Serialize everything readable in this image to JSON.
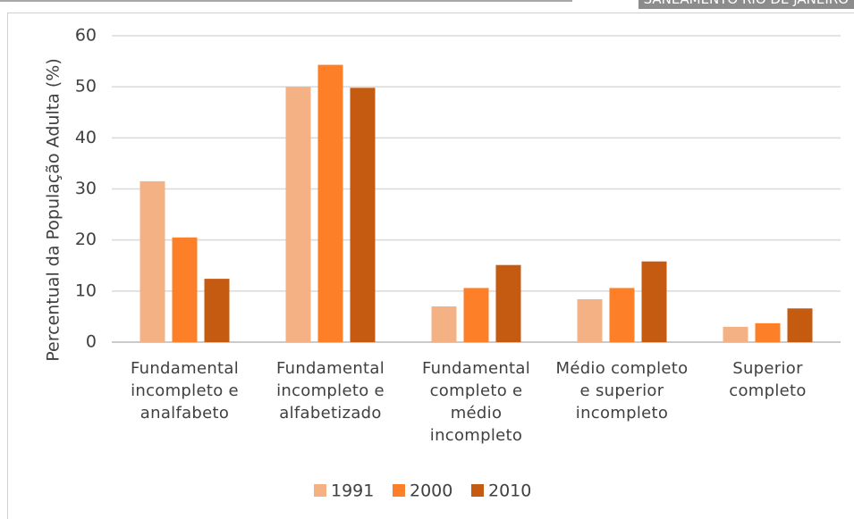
{
  "header_text": "SANEAMENTO RIO DE JANEIRO",
  "chart_data": {
    "type": "bar",
    "y_label": "Percentual da População Adulta (%)",
    "categories": [
      "Fundamental incompleto e analfabeto",
      "Fundamental incompleto e alfabetizado",
      "Fundamental completo e médio incompleto",
      "Médio completo e superior incompleto",
      "Superior completo"
    ],
    "series": [
      {
        "name": "1991",
        "color": "#f4b183",
        "values": [
          31.5,
          50,
          7,
          8.4,
          3
        ]
      },
      {
        "name": "2000",
        "color": "#fd7f28",
        "values": [
          20.5,
          54.3,
          10.6,
          10.6,
          3.7
        ]
      },
      {
        "name": "2010",
        "color": "#c55a11",
        "values": [
          12.4,
          49.8,
          15.1,
          15.8,
          6.6
        ]
      }
    ],
    "ylim": [
      0,
      60
    ],
    "yticks": [
      0,
      10,
      20,
      30,
      40,
      50,
      60
    ],
    "grid": true,
    "legend": "bottom"
  }
}
